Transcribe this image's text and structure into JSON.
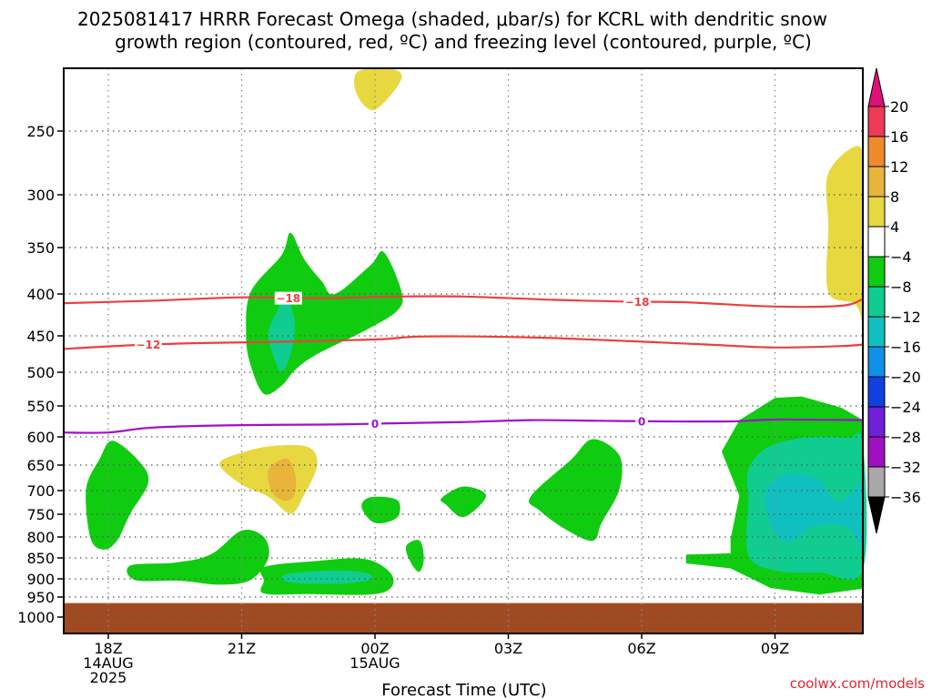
{
  "chart_data": {
    "type": "contour",
    "title_line1": "2025081417 HRRR Forecast Omega (shaded, μbar/s) for KCRL with dendritic snow",
    "title_line2": "growth region (contoured, red, ºC) and freezing level (contoured, purple, ºC)",
    "xlabel": "Forecast Time (UTC)",
    "watermark": "coolwx.com/models",
    "x_ticks": [
      {
        "hour": 18,
        "lines": [
          "18Z",
          "14AUG",
          "2025"
        ]
      },
      {
        "hour": 21,
        "lines": [
          "21Z"
        ]
      },
      {
        "hour": 24,
        "lines": [
          "00Z",
          "15AUG"
        ]
      },
      {
        "hour": 27,
        "lines": [
          "03Z"
        ]
      },
      {
        "hour": 30,
        "lines": [
          "06Z"
        ]
      },
      {
        "hour": 33,
        "lines": [
          "09Z"
        ]
      }
    ],
    "x_range": [
      17,
      35.8
    ],
    "y_ticks": [
      250,
      300,
      350,
      400,
      450,
      500,
      550,
      600,
      650,
      700,
      750,
      800,
      850,
      900,
      950,
      1000
    ],
    "y_range": [
      200,
      1020
    ],
    "ground_pressure": 965,
    "colorbar": {
      "labels": [
        "20",
        "16",
        "12",
        "8",
        "4",
        "−4",
        "−8",
        "−12",
        "−16",
        "−20",
        "−24",
        "−28",
        "−32",
        "−36"
      ],
      "colors": [
        "#ee3a54",
        "#ee8a2e",
        "#e8b43a",
        "#e8d840",
        "#ffffff",
        "#10cc10",
        "#10cc90",
        "#10c0c0",
        "#1090e8",
        "#1040e0",
        "#7020d8",
        "#a010c0",
        "#a8a8a8"
      ],
      "top_arrow_color": "#e0107a",
      "bottom_arrow_color": "#000000"
    },
    "contours": [
      {
        "name": "dgz-minus-18",
        "color": "#ee3e3e",
        "label": "−18",
        "points": [
          [
            17,
            411
          ],
          [
            19,
            408
          ],
          [
            21,
            404
          ],
          [
            22.8,
            405
          ],
          [
            24.5,
            403
          ],
          [
            26,
            403
          ],
          [
            28,
            407
          ],
          [
            29.6,
            409
          ],
          [
            31,
            410
          ],
          [
            33,
            415
          ],
          [
            34.5,
            414
          ],
          [
            35.8,
            406
          ]
        ],
        "label_at": [
          [
            22.05,
            405
          ],
          [
            29.9,
            409.5
          ]
        ]
      },
      {
        "name": "dgz-minus-12",
        "color": "#ee3e3e",
        "label": "−12",
        "points": [
          [
            17,
            468
          ],
          [
            18.5,
            463
          ],
          [
            20,
            460
          ],
          [
            22,
            458
          ],
          [
            24,
            455
          ],
          [
            25,
            451
          ],
          [
            26.5,
            451
          ],
          [
            28,
            453
          ],
          [
            30,
            458
          ],
          [
            31.5,
            462
          ],
          [
            33,
            466
          ],
          [
            34.5,
            464
          ],
          [
            35.8,
            462
          ]
        ],
        "label_at": [
          [
            18.9,
            462
          ]
        ]
      },
      {
        "name": "freezing-level-0",
        "color": "#a010c8",
        "label": "0",
        "points": [
          [
            17,
            593
          ],
          [
            18,
            593
          ],
          [
            19,
            585
          ],
          [
            21,
            581
          ],
          [
            23,
            580
          ],
          [
            24.5,
            578
          ],
          [
            26,
            576
          ],
          [
            27.5,
            573
          ],
          [
            29,
            574
          ],
          [
            30.5,
            575
          ],
          [
            32,
            575
          ],
          [
            33,
            572
          ],
          [
            35.8,
            573
          ]
        ],
        "label_at": [
          [
            24,
            579
          ],
          [
            30,
            575
          ]
        ]
      }
    ],
    "omega_regions": [
      {
        "name": "omega-pos4-top",
        "value_bin": "4 to 8",
        "color": "#e8d840",
        "points": [
          [
            23.6,
            214
          ],
          [
            24.3,
            206
          ],
          [
            24.6,
            218
          ],
          [
            24,
            237
          ],
          [
            23.6,
            228
          ]
        ]
      },
      {
        "name": "omega-pos4-right",
        "value_bin": "4 to 8",
        "color": "#e8d840",
        "points": [
          [
            34.2,
            283
          ],
          [
            34.9,
            262
          ],
          [
            35.5,
            298
          ],
          [
            35.5,
            350
          ],
          [
            35.8,
            372
          ],
          [
            35.8,
            470
          ],
          [
            35.5,
            440
          ],
          [
            34.8,
            412
          ],
          [
            34.2,
            398
          ],
          [
            34.2,
            330
          ]
        ]
      },
      {
        "name": "omega-neg4-topright",
        "value_bin": "-4 to -8",
        "color": "#10cc10",
        "points": [
          [
            35.6,
            215
          ],
          [
            35.8,
            208
          ],
          [
            35.8,
            236
          ],
          [
            35.6,
            228
          ]
        ]
      },
      {
        "name": "omega-neg4-upper",
        "value_bin": "-4 to -8",
        "color": "#10cc10",
        "points": [
          [
            21.2,
            398
          ],
          [
            21.9,
            358
          ],
          [
            22.1,
            336
          ],
          [
            22.4,
            362
          ],
          [
            22.8,
            386
          ],
          [
            23.1,
            400
          ],
          [
            23.9,
            369
          ],
          [
            24.2,
            355
          ],
          [
            24.6,
            398
          ],
          [
            24.5,
            420
          ],
          [
            23.8,
            443
          ],
          [
            22.7,
            475
          ],
          [
            22.2,
            497
          ],
          [
            21.9,
            520
          ],
          [
            21.5,
            532
          ],
          [
            21.2,
            490
          ],
          [
            21.1,
            450
          ]
        ]
      },
      {
        "name": "omega-neg8-upper",
        "value_bin": "-8 to -12",
        "color": "#10cc90",
        "points": [
          [
            21.8,
            420
          ],
          [
            22,
            402
          ],
          [
            22.2,
            436
          ],
          [
            22.1,
            475
          ],
          [
            21.9,
            499
          ],
          [
            21.7,
            475
          ],
          [
            21.6,
            446
          ]
        ]
      },
      {
        "name": "omega-pos4-mid",
        "value_bin": "4 to 8",
        "color": "#e8d840",
        "points": [
          [
            20.5,
            648
          ],
          [
            21,
            628
          ],
          [
            21.7,
            616
          ],
          [
            22.5,
            618
          ],
          [
            22.7,
            650
          ],
          [
            22.4,
            710
          ],
          [
            22.1,
            749
          ],
          [
            21.6,
            713
          ],
          [
            21,
            688
          ]
        ]
      },
      {
        "name": "omega-pos8-mid",
        "value_bin": "8 to 12",
        "color": "#e8b43a",
        "points": [
          [
            21.6,
            660
          ],
          [
            22,
            638
          ],
          [
            22.2,
            666
          ],
          [
            22.2,
            706
          ],
          [
            22,
            722
          ],
          [
            21.7,
            705
          ]
        ]
      },
      {
        "name": "omega-neg4-lowleft",
        "value_bin": "-4 to -8",
        "color": "#10cc10",
        "points": [
          [
            17.5,
            698
          ],
          [
            17.8,
            640
          ],
          [
            18.1,
            607
          ],
          [
            18.7,
            644
          ],
          [
            18.9,
            684
          ],
          [
            18.5,
            748
          ],
          [
            18.2,
            808
          ],
          [
            17.9,
            830
          ],
          [
            17.6,
            803
          ]
        ]
      },
      {
        "name": "omega-neg4-lowbase",
        "value_bin": "-4 to -8",
        "color": "#10cc10",
        "points": [
          [
            18.5,
            868
          ],
          [
            19.5,
            861
          ],
          [
            20.3,
            842
          ],
          [
            21,
            786
          ],
          [
            21.5,
            800
          ],
          [
            21.6,
            850
          ],
          [
            21.2,
            903
          ],
          [
            20.5,
            916
          ],
          [
            19.6,
            905
          ],
          [
            18.6,
            903
          ]
        ]
      },
      {
        "name": "omega-neg4-low-center",
        "value_bin": "-4 to -8",
        "color": "#10cc10",
        "points": [
          [
            21.5,
            872
          ],
          [
            22.6,
            858
          ],
          [
            23.8,
            853
          ],
          [
            24.4,
            895
          ],
          [
            24.1,
            940
          ],
          [
            22.5,
            942
          ],
          [
            21.5,
            940
          ],
          [
            21.5,
            905
          ]
        ]
      },
      {
        "name": "omega-neg8-low-center",
        "value_bin": "-8 to -12",
        "color": "#10cc90",
        "points": [
          [
            22,
            889
          ],
          [
            23.1,
            880
          ],
          [
            23.8,
            886
          ],
          [
            23.9,
            901
          ],
          [
            23.3,
            913
          ],
          [
            22.1,
            910
          ]
        ]
      },
      {
        "name": "omega-neg4-small1",
        "value_bin": "-4 to -8",
        "color": "#10cc10",
        "points": [
          [
            23.7,
            735
          ],
          [
            23.9,
            714
          ],
          [
            24.5,
            720
          ],
          [
            24.5,
            757
          ],
          [
            24,
            769
          ]
        ]
      },
      {
        "name": "omega-neg4-small2",
        "value_bin": "-4 to -8",
        "color": "#10cc10",
        "points": [
          [
            24.7,
            822
          ],
          [
            25,
            808
          ],
          [
            25.1,
            850
          ],
          [
            25,
            883
          ],
          [
            24.8,
            860
          ]
        ]
      },
      {
        "name": "omega-neg4-small3",
        "value_bin": "-4 to -8",
        "color": "#10cc10",
        "points": [
          [
            25.5,
            716
          ],
          [
            26,
            692
          ],
          [
            26.5,
            711
          ],
          [
            26,
            756
          ],
          [
            25.6,
            730
          ]
        ]
      },
      {
        "name": "omega-neg4-small4",
        "value_bin": "-4 to -8",
        "color": "#10cc10",
        "points": [
          [
            27.5,
            713
          ],
          [
            28.4,
            641
          ],
          [
            28.9,
            604
          ],
          [
            29.5,
            633
          ],
          [
            29.5,
            697
          ],
          [
            29.1,
            769
          ],
          [
            28.9,
            809
          ],
          [
            28.3,
            784
          ],
          [
            27.7,
            742
          ]
        ]
      },
      {
        "name": "omega-neg4-right",
        "value_bin": "-4 to -8",
        "color": "#10cc10",
        "points": [
          [
            31,
            863
          ],
          [
            31,
            842
          ],
          [
            32,
            839
          ],
          [
            32,
            805
          ],
          [
            32.2,
            711
          ],
          [
            31.8,
            626
          ],
          [
            32.2,
            573
          ],
          [
            33,
            538
          ],
          [
            33.6,
            536
          ],
          [
            34.5,
            553
          ],
          [
            35.8,
            573
          ],
          [
            35.8,
            928
          ],
          [
            35,
            927
          ],
          [
            34,
            943
          ],
          [
            32.9,
            925
          ],
          [
            32,
            875
          ]
        ]
      },
      {
        "name": "omega-neg8-right",
        "value_bin": "-8 to -12",
        "color": "#10cc90",
        "points": [
          [
            32.4,
            660
          ],
          [
            32.8,
            620
          ],
          [
            33.6,
            602
          ],
          [
            34.6,
            602
          ],
          [
            35.8,
            613
          ],
          [
            35.8,
            878
          ],
          [
            34,
            885
          ],
          [
            33,
            880
          ],
          [
            32.4,
            843
          ],
          [
            32.4,
            720
          ]
        ]
      },
      {
        "name": "omega-neg12-right",
        "value_bin": "-12 to -16",
        "color": "#10c0c0",
        "points": [
          [
            32.8,
            700
          ],
          [
            33.3,
            667
          ],
          [
            34,
            680
          ],
          [
            34.4,
            725
          ],
          [
            35.2,
            680
          ],
          [
            35.8,
            673
          ],
          [
            35.8,
            826
          ],
          [
            35.2,
            832
          ],
          [
            34.6,
            778
          ],
          [
            33.9,
            776
          ],
          [
            33.3,
            812
          ],
          [
            32.9,
            773
          ]
        ]
      }
    ]
  }
}
